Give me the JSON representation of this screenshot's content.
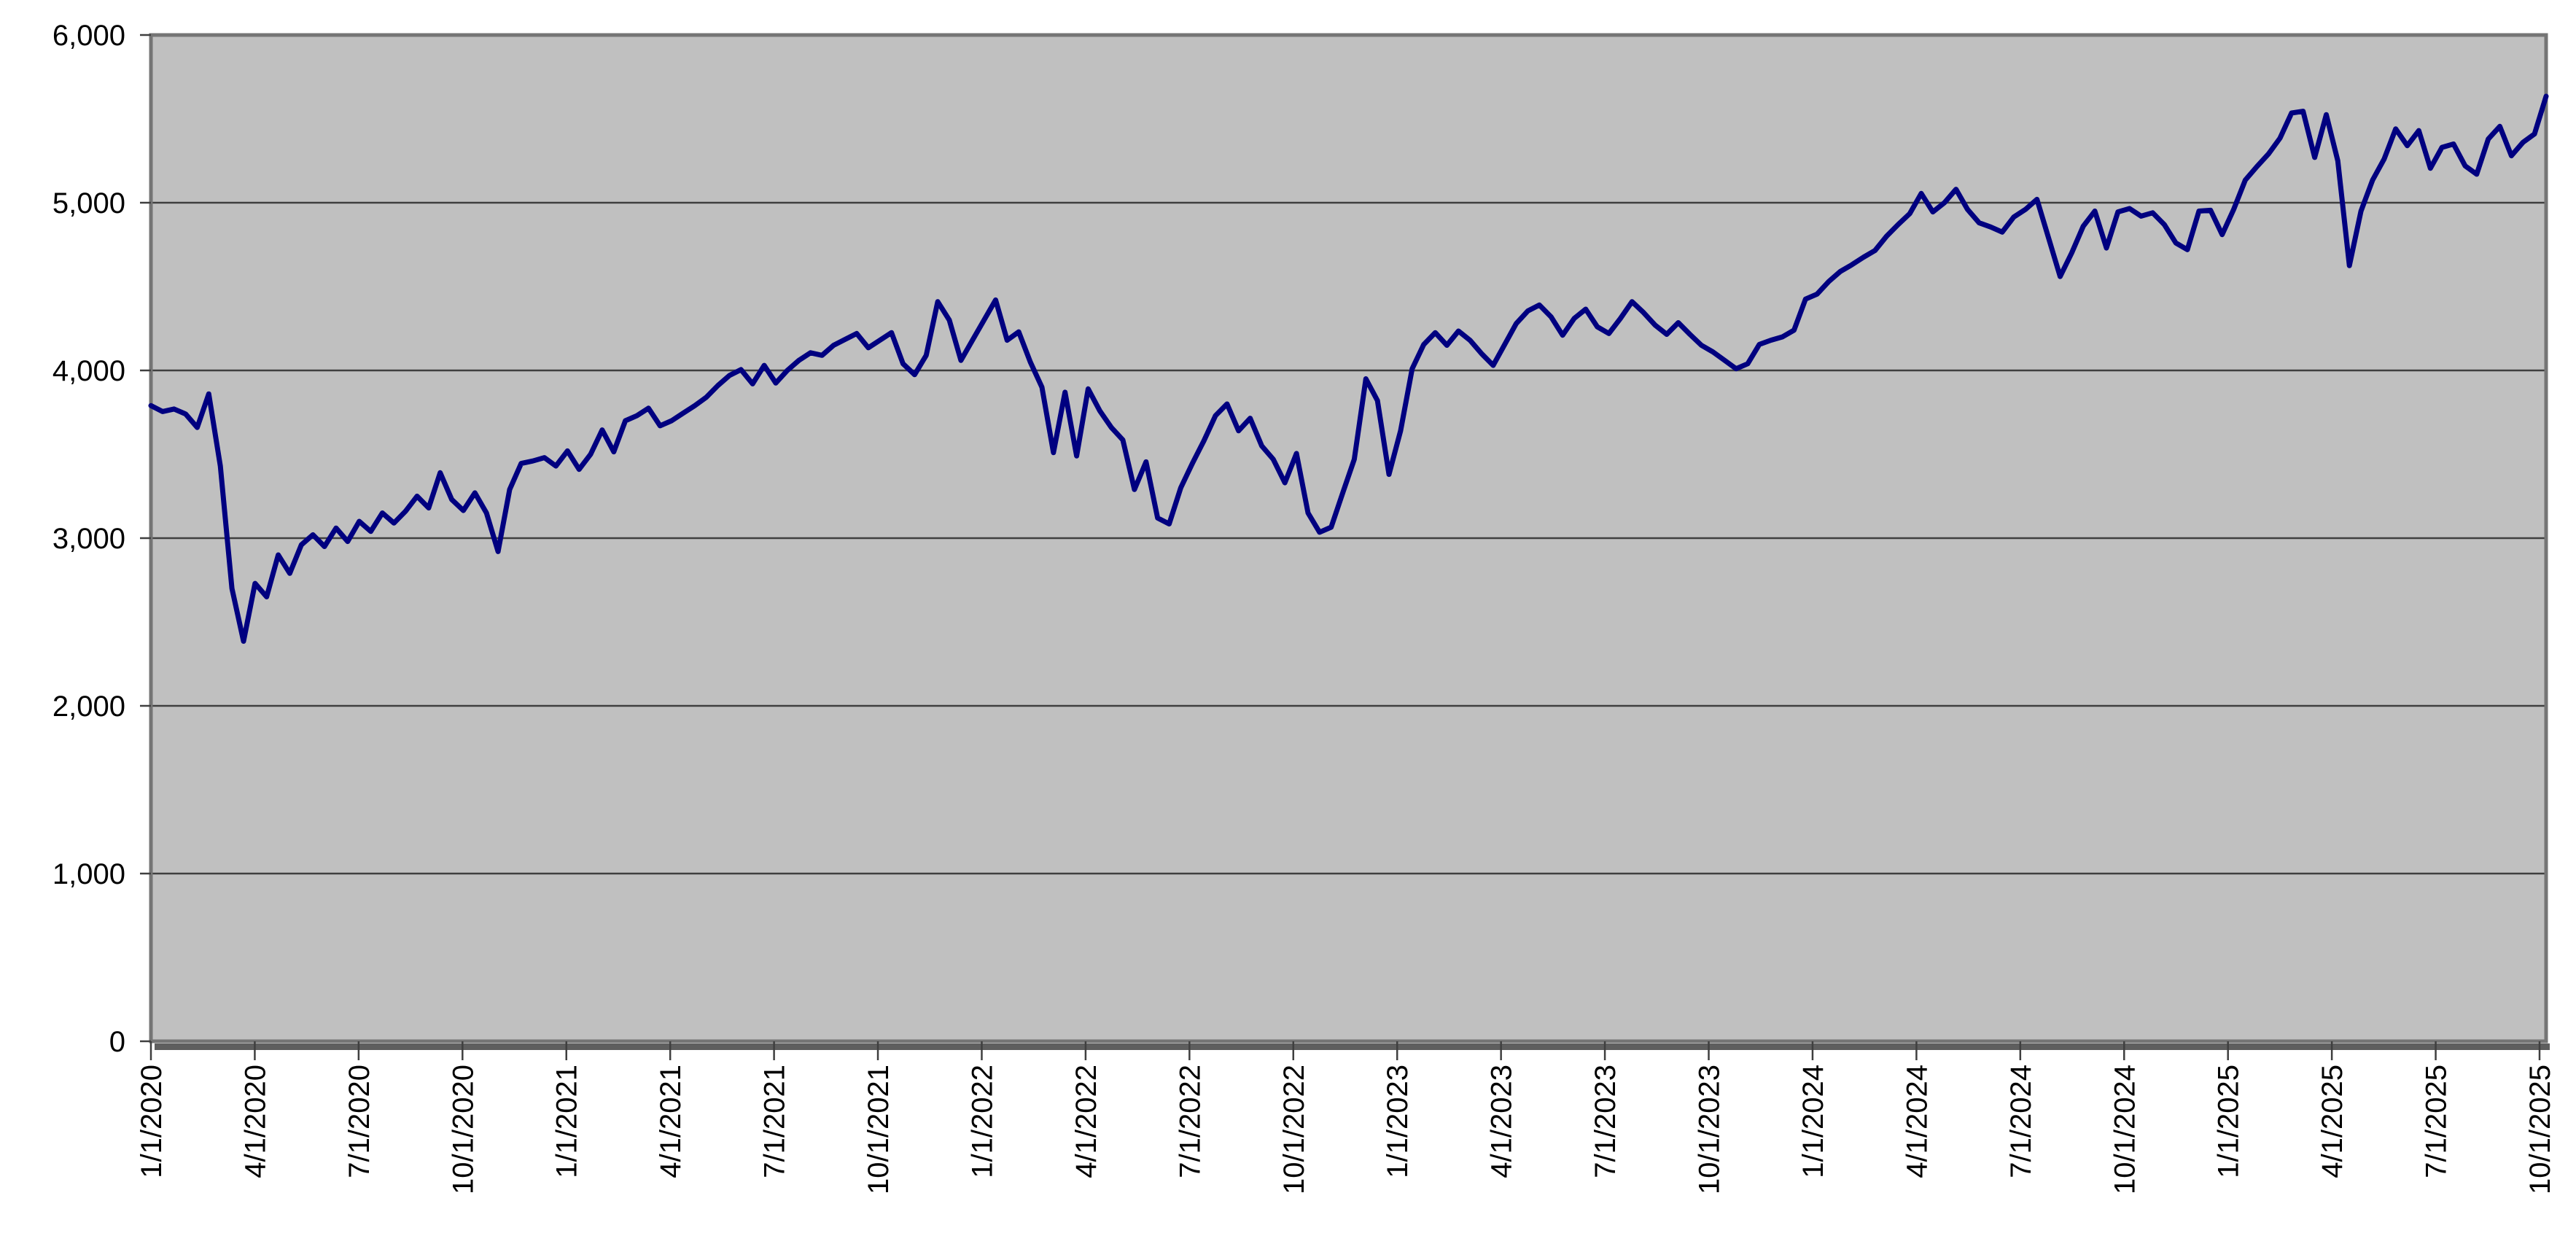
{
  "chart_data": {
    "type": "line",
    "title": "",
    "legend": "none",
    "grid": "horizontal",
    "plot_area_shape": "gray filled rectangle with shadowed border",
    "x_axis": {
      "start": "1/1/2020",
      "end": "10/1/2025",
      "tick_interval": "3 months",
      "label_rotation_degrees": -90,
      "tick_labels": [
        "1/1/2020",
        "4/1/2020",
        "7/1/2020",
        "10/1/2020",
        "1/1/2021",
        "4/1/2021",
        "7/1/2021",
        "10/1/2021",
        "1/1/2022",
        "4/1/2022",
        "7/1/2022",
        "10/1/2022",
        "1/1/2023",
        "4/1/2023",
        "7/1/2023",
        "10/1/2023",
        "1/1/2024",
        "4/1/2024",
        "7/1/2024",
        "10/1/2024",
        "1/1/2025",
        "4/1/2025",
        "7/1/2025",
        "10/1/2025"
      ]
    },
    "y_axis": {
      "min": 0,
      "max": 6000,
      "step": 1000,
      "tick_labels": [
        "6,000",
        "5,000",
        "4,000",
        "3,000",
        "2,000",
        "1,000",
        "0"
      ]
    },
    "series": [
      {
        "color": "#000080",
        "sampling": "evenly spaced values from 1/1/2020 to 10/1/2025, approx every 10 days, read from plot",
        "values": [
          3790,
          3755,
          3770,
          3740,
          3660,
          3860,
          3430,
          2700,
          2385,
          2730,
          2650,
          2900,
          2790,
          2960,
          3020,
          2950,
          3060,
          2980,
          3100,
          3040,
          3150,
          3090,
          3160,
          3250,
          3180,
          3390,
          3230,
          3165,
          3270,
          3150,
          2920,
          3290,
          3445,
          3460,
          3480,
          3430,
          3520,
          3410,
          3500,
          3645,
          3515,
          3700,
          3730,
          3775,
          3670,
          3700,
          3745,
          3790,
          3840,
          3910,
          3970,
          4005,
          3920,
          4030,
          3925,
          4000,
          4060,
          4105,
          4090,
          4150,
          4185,
          4220,
          4135,
          4180,
          4225,
          4040,
          3975,
          4090,
          4410,
          4300,
          4060,
          4180,
          4300,
          4420,
          4180,
          4230,
          4050,
          3900,
          3510,
          3870,
          3490,
          3890,
          3760,
          3660,
          3585,
          3290,
          3455,
          3120,
          3085,
          3300,
          3445,
          3580,
          3730,
          3800,
          3640,
          3715,
          3550,
          3470,
          3330,
          3505,
          3150,
          3035,
          3065,
          3270,
          3470,
          3950,
          3820,
          3380,
          3640,
          4010,
          4155,
          4225,
          4150,
          4235,
          4180,
          4100,
          4030,
          4155,
          4280,
          4355,
          4390,
          4320,
          4210,
          4310,
          4365,
          4260,
          4220,
          4310,
          4410,
          4345,
          4270,
          4215,
          4285,
          4215,
          4150,
          4110,
          4060,
          4010,
          4040,
          4155,
          4180,
          4200,
          4240,
          4425,
          4455,
          4530,
          4590,
          4630,
          4675,
          4715,
          4800,
          4870,
          4935,
          5055,
          4945,
          5000,
          5080,
          4960,
          4880,
          4855,
          4825,
          4915,
          4960,
          5020,
          4790,
          4560,
          4700,
          4860,
          4950,
          4730,
          4945,
          4965,
          4920,
          4940,
          4870,
          4760,
          4720,
          4950,
          4955,
          4810,
          4960,
          5135,
          5215,
          5290,
          5385,
          5535,
          5545,
          5270,
          5525,
          5250,
          4625,
          4950,
          5135,
          5260,
          5440,
          5340,
          5430,
          5205,
          5330,
          5350,
          5220,
          5170,
          5380,
          5455,
          5280,
          5360,
          5410,
          5635
        ]
      }
    ]
  },
  "colors": {
    "line": "#000080",
    "plot_background": "#C0C0C0",
    "gridline": "#3F3F3F",
    "plot_border": "#757575",
    "plot_shadow": "#5E5E5E",
    "tick": "#3F3F3F",
    "text": "#000000",
    "page_background": "#FFFFFF"
  }
}
